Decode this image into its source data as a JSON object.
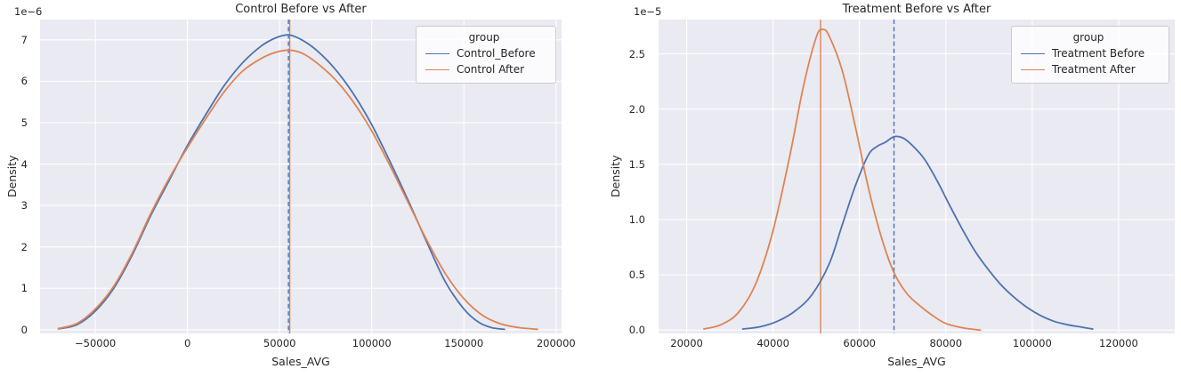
{
  "style": {
    "axes_bg": "#eaeaf2",
    "grid_color": "#ffffff",
    "text_color": "#262626",
    "blue": "#4c72b0",
    "orange": "#dd8452"
  },
  "chart_data": [
    {
      "type": "line",
      "kind": "kde",
      "title": "Control Before vs After",
      "xlabel": "Sales_AVG",
      "ylabel": "Density",
      "y_offset_label": "1e−6",
      "legend_title": "group",
      "legend_position": "upper right",
      "grid": true,
      "xlim": [
        -80000,
        203000
      ],
      "ylim": [
        -0.09,
        7.49
      ],
      "xticks": [
        -50000,
        0,
        50000,
        100000,
        150000,
        200000
      ],
      "xtick_labels": [
        "−50000",
        "0",
        "50000",
        "100000",
        "150000",
        "200000"
      ],
      "yticks": [
        0,
        1,
        2,
        3,
        4,
        5,
        6,
        7
      ],
      "ytick_labels": [
        "0",
        "1",
        "2",
        "3",
        "4",
        "5",
        "6",
        "7"
      ],
      "vlines": [
        {
          "x": 55500,
          "color": "#dd8452",
          "style": "solid"
        },
        {
          "x": 54800,
          "color": "#4c72b0",
          "style": "dashed"
        }
      ],
      "series": [
        {
          "name": "Control_Before",
          "color": "#4c72b0",
          "points": [
            [
              -70000,
              0.02
            ],
            [
              -60000,
              0.12
            ],
            [
              -50000,
              0.45
            ],
            [
              -40000,
              1.0
            ],
            [
              -30000,
              1.8
            ],
            [
              -20000,
              2.75
            ],
            [
              -10000,
              3.6
            ],
            [
              0,
              4.45
            ],
            [
              10000,
              5.2
            ],
            [
              20000,
              5.9
            ],
            [
              30000,
              6.45
            ],
            [
              40000,
              6.85
            ],
            [
              48000,
              7.05
            ],
            [
              55000,
              7.12
            ],
            [
              62000,
              7.0
            ],
            [
              70000,
              6.75
            ],
            [
              80000,
              6.3
            ],
            [
              90000,
              5.7
            ],
            [
              100000,
              4.95
            ],
            [
              110000,
              4.05
            ],
            [
              120000,
              3.1
            ],
            [
              130000,
              2.1
            ],
            [
              140000,
              1.15
            ],
            [
              150000,
              0.5
            ],
            [
              158000,
              0.18
            ],
            [
              165000,
              0.05
            ],
            [
              172000,
              0.01
            ]
          ]
        },
        {
          "name": "Control After",
          "color": "#dd8452",
          "points": [
            [
              -70000,
              0.03
            ],
            [
              -60000,
              0.15
            ],
            [
              -50000,
              0.5
            ],
            [
              -40000,
              1.05
            ],
            [
              -30000,
              1.85
            ],
            [
              -20000,
              2.8
            ],
            [
              -10000,
              3.65
            ],
            [
              0,
              4.4
            ],
            [
              10000,
              5.1
            ],
            [
              20000,
              5.75
            ],
            [
              30000,
              6.25
            ],
            [
              40000,
              6.55
            ],
            [
              48000,
              6.7
            ],
            [
              55000,
              6.75
            ],
            [
              62000,
              6.68
            ],
            [
              70000,
              6.45
            ],
            [
              80000,
              6.05
            ],
            [
              90000,
              5.5
            ],
            [
              100000,
              4.8
            ],
            [
              110000,
              3.95
            ],
            [
              120000,
              3.05
            ],
            [
              130000,
              2.15
            ],
            [
              140000,
              1.35
            ],
            [
              150000,
              0.75
            ],
            [
              160000,
              0.35
            ],
            [
              170000,
              0.14
            ],
            [
              180000,
              0.05
            ],
            [
              190000,
              0.01
            ]
          ]
        }
      ]
    },
    {
      "type": "line",
      "kind": "kde",
      "title": "Treatment Before vs After",
      "xlabel": "Sales_AVG",
      "ylabel": "Density",
      "y_offset_label": "1e−5",
      "legend_title": "group",
      "legend_position": "upper right",
      "grid": true,
      "xlim": [
        13500,
        133000
      ],
      "ylim": [
        -0.03,
        2.81
      ],
      "xticks": [
        20000,
        40000,
        60000,
        80000,
        100000,
        120000
      ],
      "xtick_labels": [
        "20000",
        "40000",
        "60000",
        "80000",
        "100000",
        "120000"
      ],
      "yticks": [
        0,
        0.5,
        1.0,
        1.5,
        2.0,
        2.5
      ],
      "ytick_labels": [
        "0.0",
        "0.5",
        "1.0",
        "1.5",
        "2.0",
        "2.5"
      ],
      "vlines": [
        {
          "x": 51000,
          "color": "#dd8452",
          "style": "solid"
        },
        {
          "x": 68000,
          "color": "#4c72b0",
          "style": "dashed"
        }
      ],
      "series": [
        {
          "name": "Treatment Before",
          "color": "#4c72b0",
          "points": [
            [
              33000,
              0.01
            ],
            [
              37000,
              0.03
            ],
            [
              41000,
              0.08
            ],
            [
              45000,
              0.17
            ],
            [
              49000,
              0.32
            ],
            [
              53000,
              0.6
            ],
            [
              56000,
              0.95
            ],
            [
              59000,
              1.3
            ],
            [
              62000,
              1.58
            ],
            [
              64000,
              1.66
            ],
            [
              66000,
              1.7
            ],
            [
              68000,
              1.75
            ],
            [
              70000,
              1.74
            ],
            [
              72000,
              1.68
            ],
            [
              75000,
              1.55
            ],
            [
              78000,
              1.35
            ],
            [
              81000,
              1.12
            ],
            [
              84000,
              0.9
            ],
            [
              87000,
              0.7
            ],
            [
              90000,
              0.54
            ],
            [
              93000,
              0.4
            ],
            [
              96000,
              0.29
            ],
            [
              99000,
              0.2
            ],
            [
              102000,
              0.13
            ],
            [
              105000,
              0.08
            ],
            [
              108000,
              0.05
            ],
            [
              111000,
              0.03
            ],
            [
              114000,
              0.01
            ]
          ]
        },
        {
          "name": "Treatment After",
          "color": "#dd8452",
          "points": [
            [
              24000,
              0.01
            ],
            [
              28000,
              0.05
            ],
            [
              32000,
              0.16
            ],
            [
              36000,
              0.42
            ],
            [
              40000,
              0.9
            ],
            [
              44000,
              1.6
            ],
            [
              47000,
              2.2
            ],
            [
              50000,
              2.65
            ],
            [
              51500,
              2.72
            ],
            [
              53000,
              2.66
            ],
            [
              56000,
              2.35
            ],
            [
              59000,
              1.85
            ],
            [
              62000,
              1.3
            ],
            [
              65000,
              0.85
            ],
            [
              68000,
              0.52
            ],
            [
              71000,
              0.33
            ],
            [
              74000,
              0.22
            ],
            [
              77000,
              0.13
            ],
            [
              80000,
              0.06
            ],
            [
              84000,
              0.02
            ],
            [
              88000,
              0.0
            ]
          ]
        }
      ]
    }
  ]
}
